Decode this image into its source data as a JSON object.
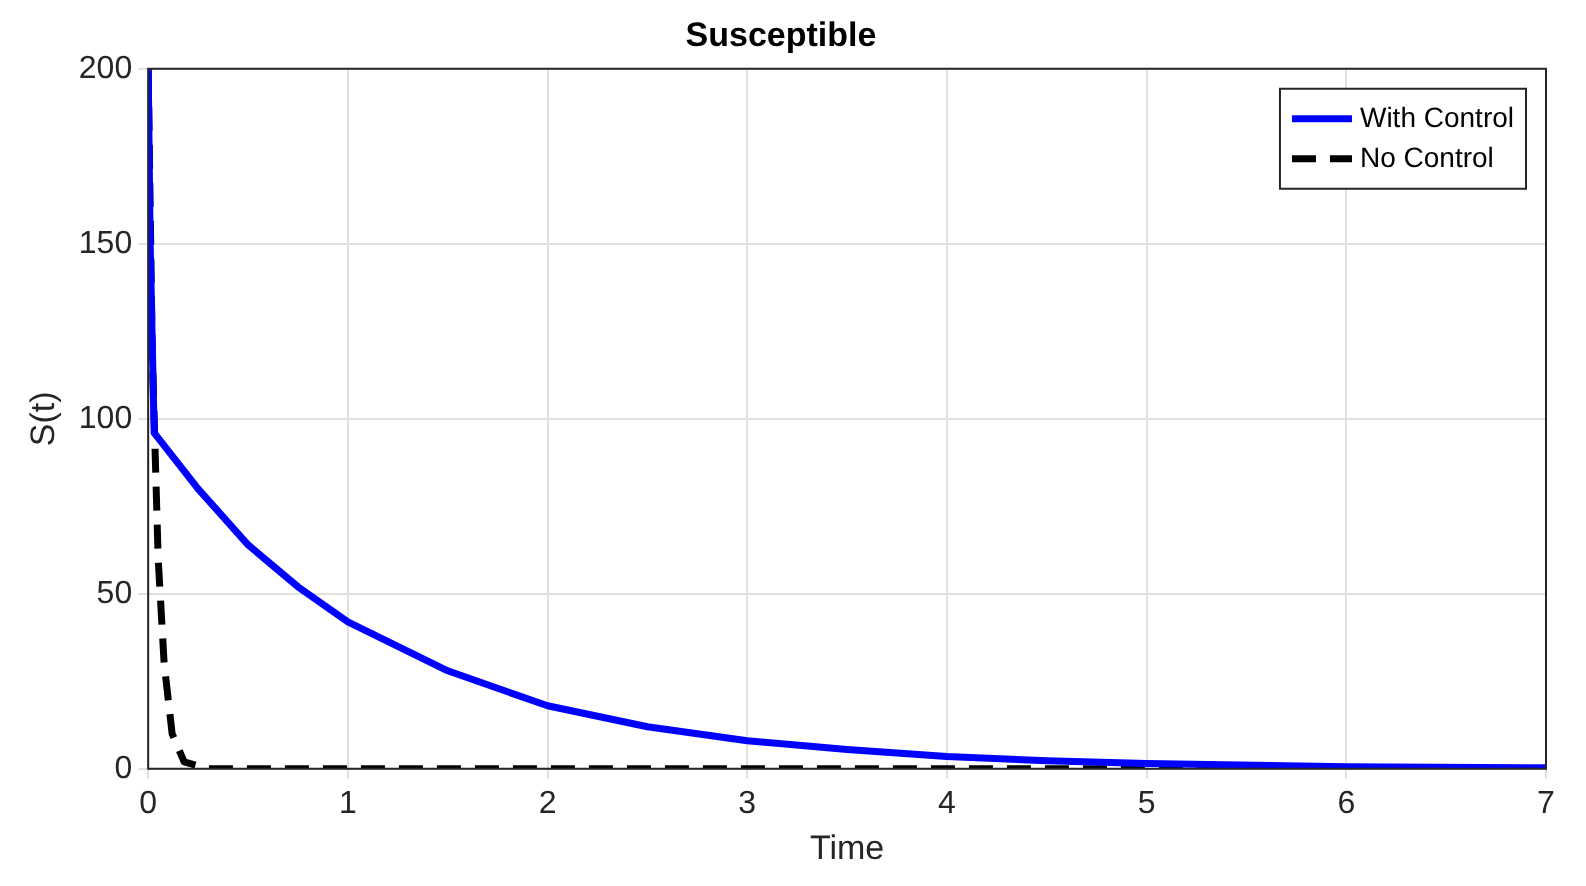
{
  "chart_data": {
    "type": "line",
    "title": "Susceptible",
    "xlabel": "Time",
    "ylabel": "S(t)",
    "xlim": [
      0,
      7
    ],
    "xticks": [
      0,
      1,
      2,
      3,
      4,
      5,
      6,
      7
    ],
    "ylim": [
      0,
      200
    ],
    "yticks": [
      0,
      50,
      100,
      150,
      200
    ],
    "grid": true,
    "legend": "top right",
    "marker": "none",
    "series": [
      {
        "name": "With Control",
        "color": "#0000ff",
        "line_style": "solid",
        "x": [
          0,
          0.01,
          0.03,
          0.25,
          0.5,
          0.75,
          1,
          1.5,
          2,
          2.5,
          3,
          3.5,
          4,
          4.5,
          5,
          6,
          7
        ],
        "values": [
          200,
          150,
          96,
          80,
          64,
          52,
          42,
          28,
          18,
          12,
          8,
          5.5,
          3.5,
          2.3,
          1.5,
          0.6,
          0.3
        ]
      },
      {
        "name": "No Control",
        "color": "#000000",
        "line_style": "dashed",
        "x": [
          0,
          0.02,
          0.05,
          0.08,
          0.12,
          0.18,
          0.3,
          1,
          2,
          3,
          4,
          5,
          6,
          7
        ],
        "values": [
          200,
          120,
          60,
          30,
          10,
          2,
          0,
          0,
          0,
          0,
          0,
          0,
          0,
          0
        ]
      }
    ]
  }
}
